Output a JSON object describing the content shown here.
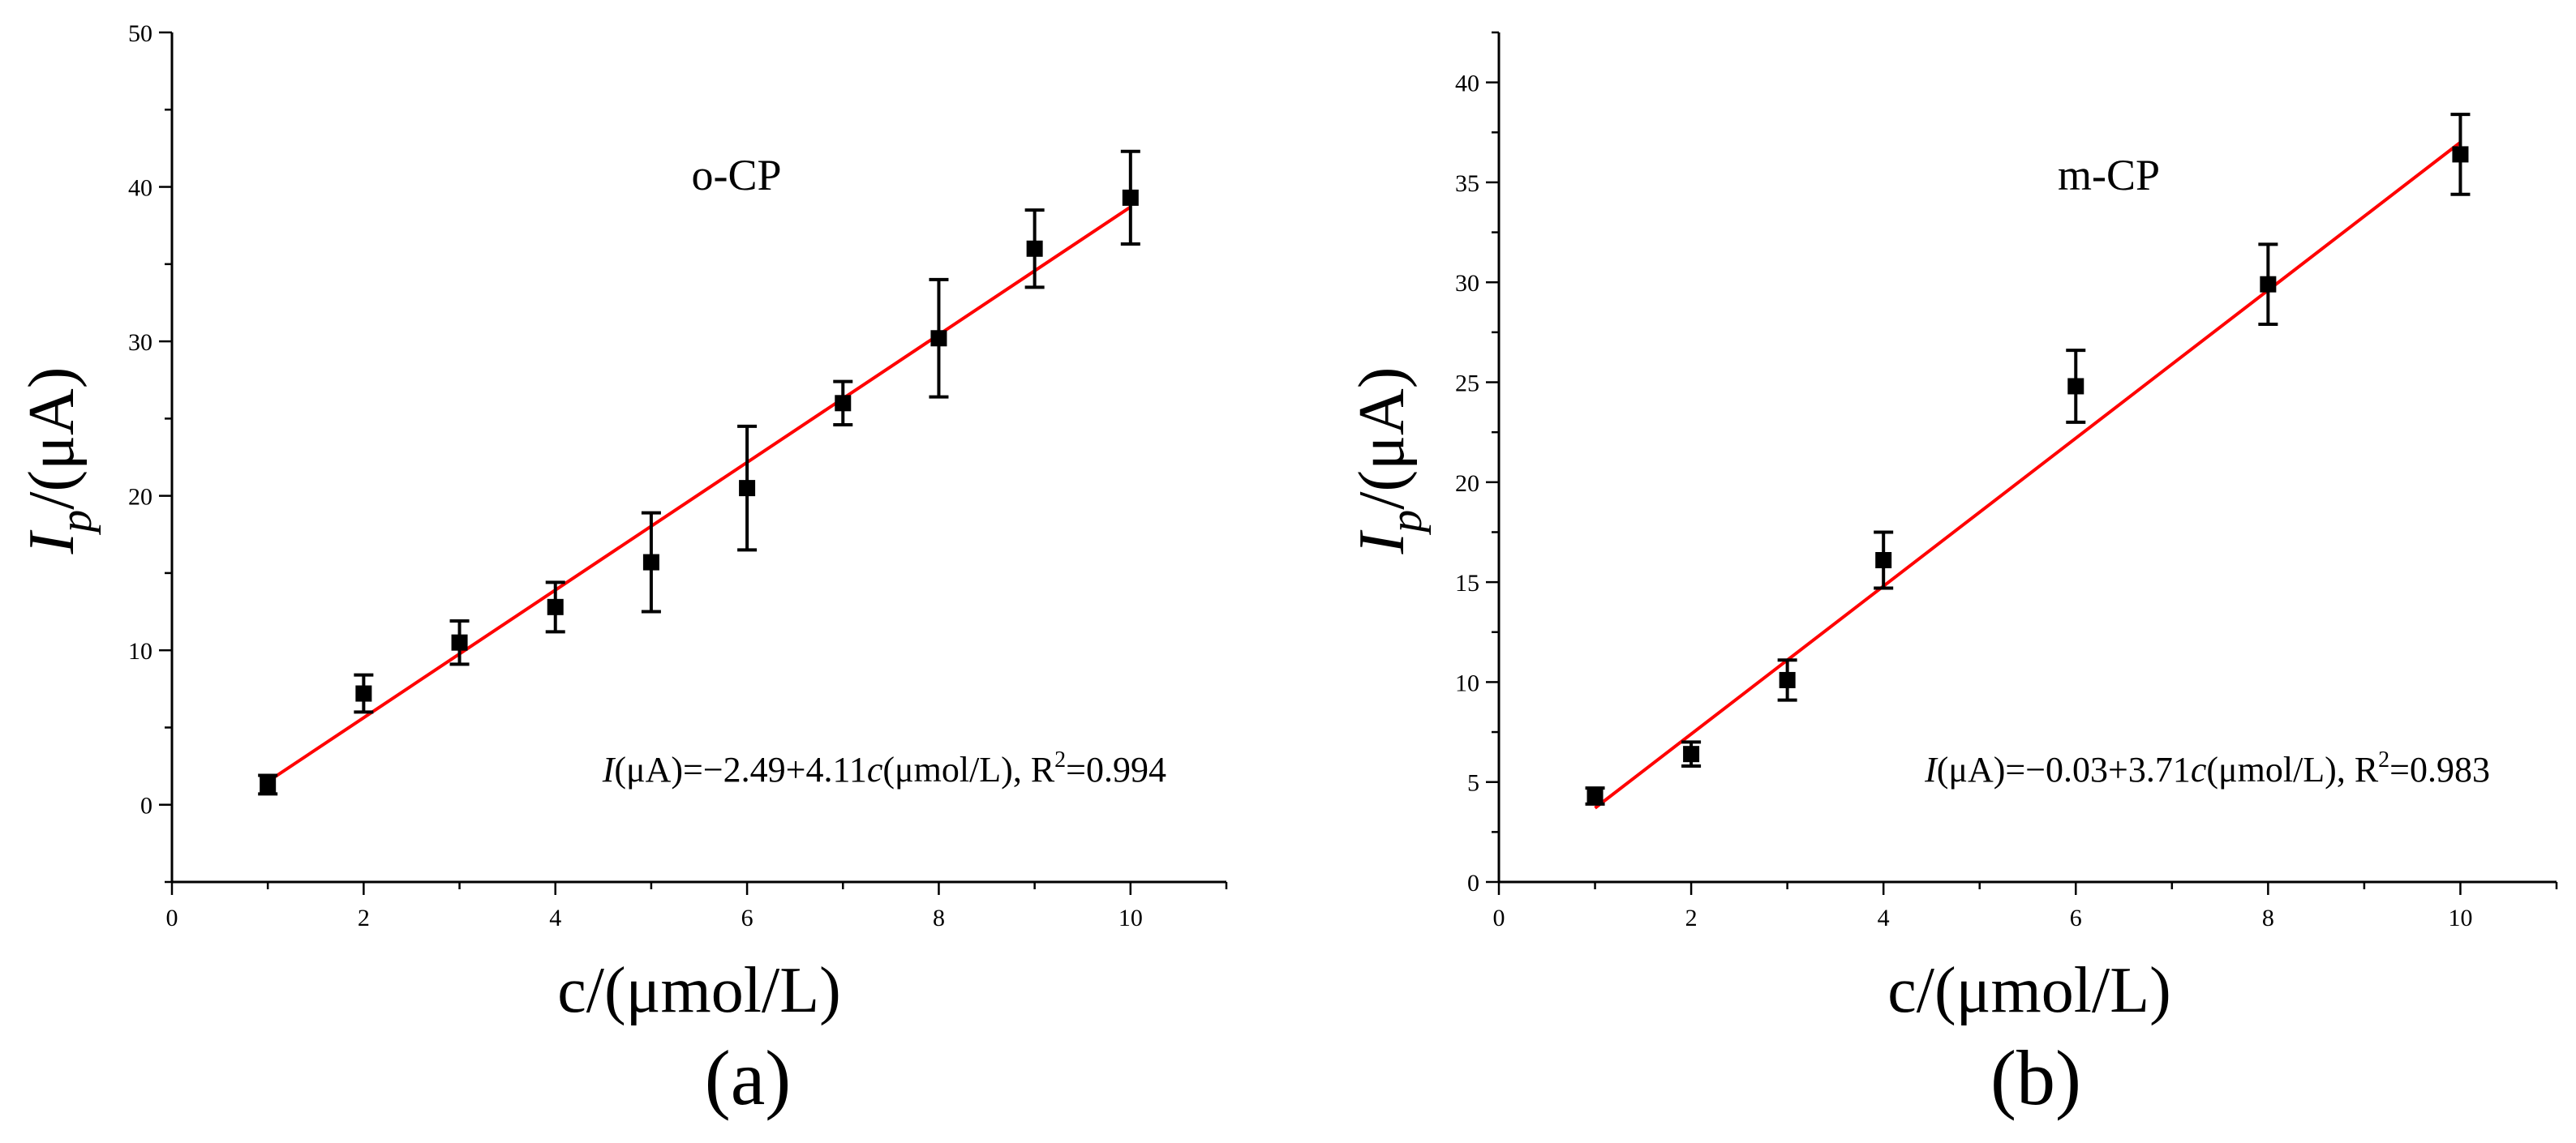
{
  "chart_data": [
    {
      "type": "scatter",
      "panel_label": "(a)",
      "title": "o-CP",
      "xlabel": "c/(μmol/L)",
      "ylabel": {
        "main": "I",
        "sub": "p",
        "unit": "/(μA)"
      },
      "xlim": [
        0,
        11
      ],
      "ylim": [
        -5,
        50
      ],
      "xticks": [
        0,
        2,
        4,
        6,
        8,
        10
      ],
      "xtick_labels": [
        "0",
        "2",
        "4",
        "6",
        "8",
        "10"
      ],
      "yticks": [
        0,
        10,
        20,
        30,
        40,
        50
      ],
      "ytick_labels": [
        "0",
        "10",
        "20",
        "30",
        "40",
        "50"
      ],
      "series": [
        {
          "name": "o-CP",
          "x": [
            1,
            2,
            3,
            4,
            5,
            6,
            7,
            8,
            9,
            10
          ],
          "y": [
            1.3,
            7.2,
            10.5,
            12.8,
            15.7,
            20.5,
            26.0,
            30.2,
            36.0,
            39.3
          ],
          "err": [
            0.6,
            1.2,
            1.4,
            1.6,
            3.2,
            4.0,
            1.4,
            3.8,
            2.5,
            3.0
          ]
        }
      ],
      "fit": {
        "x": [
          1,
          10
        ],
        "y": [
          1.5,
          38.7
        ],
        "color": "#ff0000"
      },
      "equation": {
        "var": "I",
        "part1": "(μA)=−2.49+4.11",
        "cvar": "c",
        "part2": "(μmol/L), R",
        "sup": "2",
        "part3": "=0.994"
      },
      "colors": {
        "marker": "#000000",
        "fit": "#ff0000"
      }
    },
    {
      "type": "scatter",
      "panel_label": "(b)",
      "title": "m-CP",
      "xlabel": "c/(μmol/L)",
      "ylabel": {
        "main": "I",
        "sub": "p",
        "unit": "/(μA)"
      },
      "xlim": [
        0,
        11
      ],
      "ylim": [
        0,
        42.5
      ],
      "xticks": [
        0,
        2,
        4,
        6,
        8,
        10
      ],
      "xtick_labels": [
        "0",
        "2",
        "4",
        "6",
        "8",
        "10"
      ],
      "yticks": [
        0,
        5,
        10,
        15,
        20,
        25,
        30,
        35,
        40
      ],
      "ytick_labels": [
        "0",
        "5",
        "10",
        "15",
        "20",
        "25",
        "30",
        "35",
        "40"
      ],
      "series": [
        {
          "name": "m-CP",
          "x": [
            1,
            2,
            3,
            4,
            6,
            8,
            10
          ],
          "y": [
            4.3,
            6.4,
            10.1,
            16.1,
            24.8,
            29.9,
            36.4
          ],
          "err": [
            0.4,
            0.6,
            1.0,
            1.4,
            1.8,
            2.0,
            2.0
          ]
        }
      ],
      "fit": {
        "x": [
          1,
          10
        ],
        "y": [
          3.7,
          37.0
        ],
        "color": "#ff0000"
      },
      "equation": {
        "var": "I",
        "part1": "(μA)=−0.03+3.71",
        "cvar": "c",
        "part2": "(μmol/L), R",
        "sup": "2",
        "part3": "=0.983"
      },
      "colors": {
        "marker": "#000000",
        "fit": "#ff0000"
      }
    }
  ]
}
